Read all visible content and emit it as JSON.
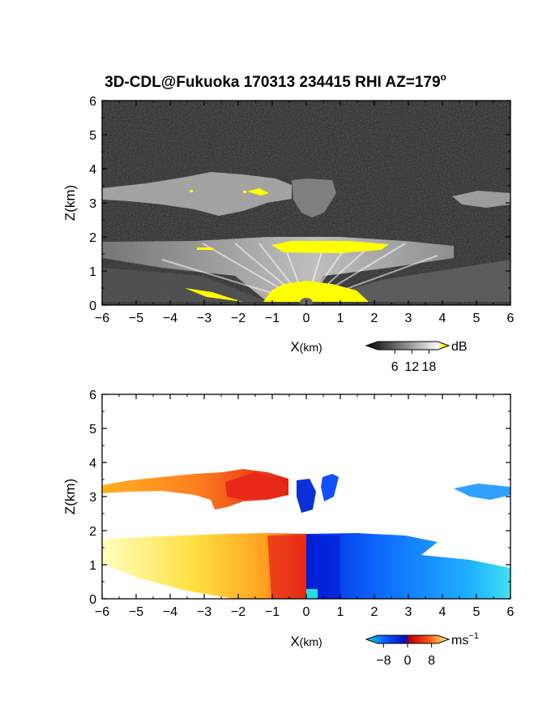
{
  "title": "3D-CDL@Fukuoka 170313 234415 RHI AZ=179",
  "title_superscript": "o",
  "chart_data": [
    {
      "type": "heatmap",
      "name": "backscatter intensity",
      "xlabel": "X",
      "xlabel_unit": "(km)",
      "ylabel": "Z(km)",
      "xlim": [
        -6,
        6
      ],
      "ylim": [
        0,
        6
      ],
      "xticks": [
        -6,
        -5,
        -4,
        -3,
        -2,
        -1,
        0,
        1,
        2,
        3,
        4,
        5,
        6
      ],
      "yticks": [
        0,
        1,
        2,
        3,
        4,
        5,
        6
      ],
      "colorbar": {
        "unit": "dB",
        "ticks": [
          6,
          12,
          18
        ],
        "range": [
          0,
          21
        ],
        "colors": [
          "#000000",
          "#ffffff",
          "#ffff00"
        ]
      },
      "background_color": "#2a2a2a",
      "features": [
        {
          "label": "upper cloud layer (left)",
          "x": [
            -6.0,
            0.9
          ],
          "z": [
            2.8,
            3.6
          ]
        },
        {
          "label": "upper cloud layer (right)",
          "x": [
            4.5,
            6.0
          ],
          "z": [
            3.0,
            3.4
          ]
        },
        {
          "label": "lower layer with strong echo",
          "x": [
            -6.0,
            3.8
          ],
          "z": [
            1.5,
            1.85
          ]
        },
        {
          "label": "near-surface strong echo",
          "x": [
            -1.0,
            2.0
          ],
          "z": [
            0.0,
            0.6
          ]
        }
      ]
    },
    {
      "type": "heatmap",
      "name": "Doppler velocity",
      "xlabel": "X",
      "xlabel_unit": "(km)",
      "ylabel": "Z(km)",
      "xlim": [
        -6,
        6
      ],
      "ylim": [
        0,
        6
      ],
      "xticks": [
        -6,
        -5,
        -4,
        -3,
        -2,
        -1,
        0,
        1,
        2,
        3,
        4,
        5,
        6
      ],
      "yticks": [
        0,
        1,
        2,
        3,
        4,
        5,
        6
      ],
      "colorbar": {
        "unit": "ms",
        "unit_superscript": "−1",
        "ticks": [
          "−8",
          "0",
          "8"
        ],
        "range": [
          -10,
          10
        ],
        "colors": [
          "#00e0e0",
          "#1050ff",
          "#0010c0",
          "#c00000",
          "#ff5010",
          "#ffff80"
        ]
      },
      "features": [
        {
          "label": "receding flow (left)",
          "x": [
            -6.0,
            0.0
          ],
          "z": [
            0.0,
            1.85
          ],
          "velocity": 6
        },
        {
          "label": "approaching flow (right)",
          "x": [
            0.0,
            6.0
          ],
          "z": [
            0.0,
            1.85
          ],
          "velocity": -6
        },
        {
          "label": "upper layer (left)",
          "x": [
            -6.0,
            -0.4
          ],
          "z": [
            2.7,
            3.75
          ],
          "velocity": 4
        },
        {
          "label": "upper layer (center)",
          "x": [
            -0.3,
            1.0
          ],
          "z": [
            2.5,
            3.6
          ],
          "velocity": -7
        },
        {
          "label": "upper layer (right)",
          "x": [
            4.4,
            6.0
          ],
          "z": [
            2.8,
            3.3
          ],
          "velocity": -4
        }
      ]
    }
  ]
}
